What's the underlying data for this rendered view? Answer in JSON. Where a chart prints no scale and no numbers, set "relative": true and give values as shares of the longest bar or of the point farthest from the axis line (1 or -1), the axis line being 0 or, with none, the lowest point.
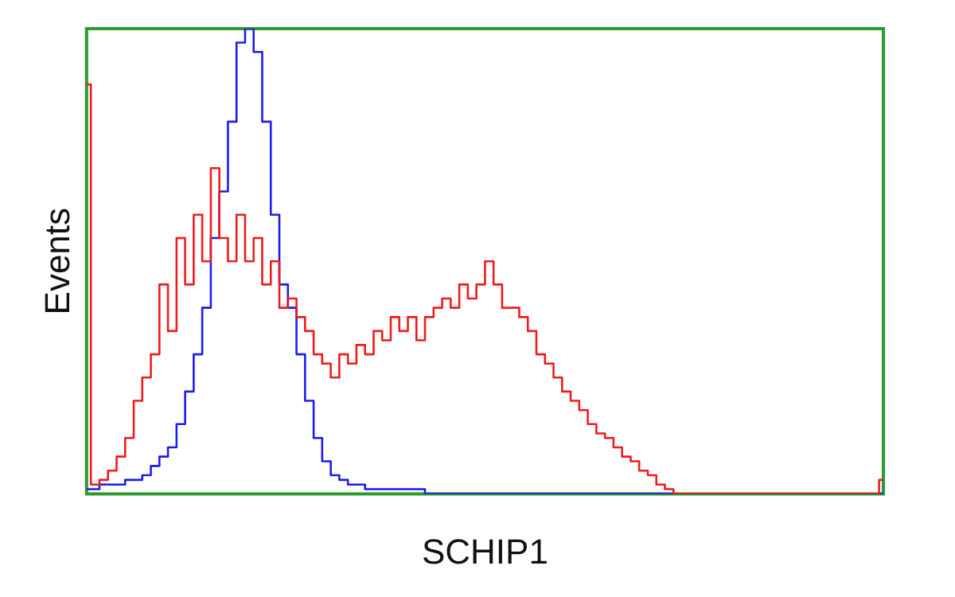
{
  "chart_data": {
    "type": "step",
    "relative": true,
    "xlabel": "SCHIP1",
    "ylabel": "Events",
    "legend": false,
    "grid": false,
    "marker": "none",
    "categories": [
      null,
      null,
      null,
      null,
      null,
      null,
      null,
      null,
      null,
      null,
      null,
      null,
      null,
      null,
      null,
      null,
      null,
      null,
      null,
      null,
      null,
      null,
      null,
      null,
      null,
      null,
      null,
      null,
      null,
      null,
      null,
      null,
      null,
      null,
      null,
      null,
      null,
      null,
      null,
      null,
      null,
      null,
      null,
      null,
      null,
      null,
      null,
      null,
      null,
      null,
      null,
      null,
      null,
      null,
      null,
      null,
      null,
      null,
      null,
      null,
      null,
      null,
      null,
      null,
      null,
      null,
      null,
      null,
      null,
      null,
      null,
      null,
      null,
      null,
      null,
      null,
      null,
      null,
      null,
      null,
      null,
      null,
      null,
      null,
      null,
      null,
      null,
      null,
      null,
      null,
      null,
      null,
      null,
      null
    ],
    "series": [
      {
        "color": "#ee1c1c",
        "values": [
          0.88,
          0.02,
          0.03,
          0.05,
          0.08,
          0.12,
          0.2,
          0.25,
          0.3,
          0.45,
          0.35,
          0.55,
          0.45,
          0.6,
          0.5,
          0.7,
          0.55,
          0.5,
          0.6,
          0.5,
          0.55,
          0.45,
          0.5,
          0.4,
          0.42,
          0.38,
          0.35,
          0.3,
          0.28,
          0.25,
          0.3,
          0.28,
          0.32,
          0.3,
          0.35,
          0.33,
          0.38,
          0.35,
          0.38,
          0.33,
          0.38,
          0.4,
          0.42,
          0.4,
          0.45,
          0.42,
          0.45,
          0.5,
          0.45,
          0.4,
          0.4,
          0.38,
          0.35,
          0.3,
          0.28,
          0.25,
          0.22,
          0.2,
          0.18,
          0.15,
          0.13,
          0.12,
          0.1,
          0.08,
          0.07,
          0.05,
          0.04,
          0.02,
          0.01,
          0,
          0,
          0,
          0,
          0,
          0,
          0,
          0,
          0,
          0,
          0,
          0,
          0,
          0,
          0,
          0,
          0,
          0,
          0,
          0,
          0,
          0,
          0,
          0,
          0.03
        ]
      },
      {
        "color": "#1c1cee",
        "values": [
          0.01,
          0.01,
          0.02,
          0.02,
          0.02,
          0.03,
          0.03,
          0.04,
          0.06,
          0.08,
          0.1,
          0.15,
          0.22,
          0.3,
          0.4,
          0.55,
          0.65,
          0.8,
          0.97,
          1,
          0.95,
          0.8,
          0.6,
          0.45,
          0.4,
          0.3,
          0.2,
          0.12,
          0.07,
          0.04,
          0.03,
          0.02,
          0.02,
          0.01,
          0.01,
          0.01,
          0.01,
          0.01,
          0.01,
          0.01,
          0,
          0,
          0,
          0,
          0,
          0,
          0,
          0,
          0,
          0,
          0,
          0,
          0,
          0,
          0,
          0,
          0,
          0,
          0,
          0,
          0,
          0,
          0,
          0,
          0,
          0,
          0,
          0,
          0,
          0,
          0,
          0,
          0,
          0,
          0,
          0,
          0,
          0,
          0,
          0,
          0,
          0,
          0,
          0,
          0,
          0,
          0,
          0,
          0,
          0,
          0,
          0,
          0,
          0
        ]
      }
    ]
  }
}
